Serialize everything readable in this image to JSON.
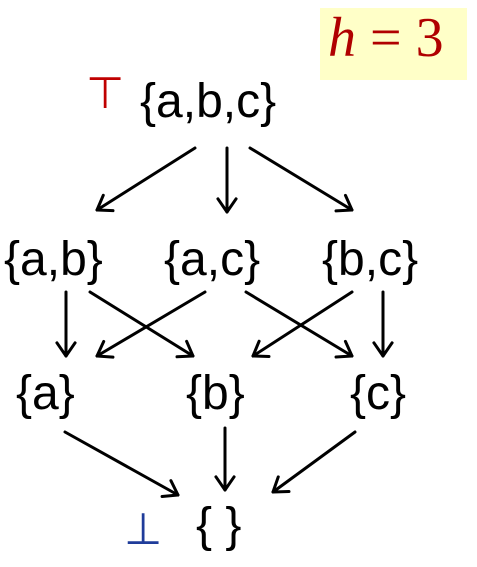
{
  "height_badge": {
    "variable": "h",
    "equals": " = ",
    "value": "3",
    "text_color": "#b00000",
    "background": "#ffffc8"
  },
  "top_symbol": {
    "glyph": "⊤",
    "color": "#c00000"
  },
  "bottom_symbol": {
    "glyph": "⊥",
    "color": "#1f3c9a"
  },
  "nodes": {
    "abc": "{a,b,c}",
    "ab": "{a,b}",
    "ac": "{a,c}",
    "bc": "{b,c}",
    "a": "{a}",
    "b": "{b}",
    "c": "{c}",
    "empty": "{ }"
  },
  "edges": [
    {
      "from": "abc",
      "to": "ab"
    },
    {
      "from": "abc",
      "to": "ac"
    },
    {
      "from": "abc",
      "to": "bc"
    },
    {
      "from": "ab",
      "to": "a"
    },
    {
      "from": "ab",
      "to": "b"
    },
    {
      "from": "ac",
      "to": "a"
    },
    {
      "from": "ac",
      "to": "c"
    },
    {
      "from": "bc",
      "to": "b"
    },
    {
      "from": "bc",
      "to": "c"
    },
    {
      "from": "a",
      "to": "empty"
    },
    {
      "from": "b",
      "to": "empty"
    },
    {
      "from": "c",
      "to": "empty"
    }
  ]
}
